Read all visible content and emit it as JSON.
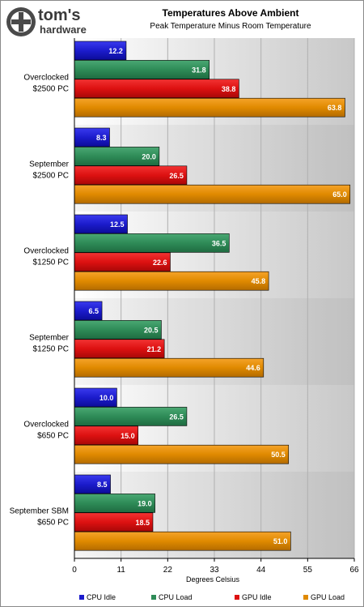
{
  "header": {
    "logo_text_top": "tom's",
    "logo_text_bottom": "hardware"
  },
  "chart_data": {
    "type": "bar",
    "orientation": "horizontal",
    "title": "Temperatures Above Ambient",
    "subtitle": "Peak Temperature Minus Room Temperature",
    "xlabel": "Degrees Celsius",
    "ylabel": "",
    "xlim": [
      0,
      66
    ],
    "ticks": [
      0,
      11,
      22,
      33,
      44,
      55,
      66
    ],
    "grid": true,
    "legend_position": "bottom",
    "categories": [
      [
        "Overclocked",
        "$2500 PC"
      ],
      [
        "September",
        "$2500 PC"
      ],
      [
        "Overclocked",
        "$1250 PC"
      ],
      [
        "September",
        "$1250 PC"
      ],
      [
        "Overclocked",
        "$650 PC"
      ],
      [
        "September SBM",
        "$650 PC"
      ]
    ],
    "series": [
      {
        "name": "CPU Idle",
        "color": "#1c1ccc",
        "values": [
          12.2,
          8.3,
          12.5,
          6.5,
          10.0,
          8.5
        ]
      },
      {
        "name": "CPU Load",
        "color": "#2e8b57",
        "values": [
          31.8,
          20.0,
          36.5,
          20.5,
          26.5,
          19.0
        ]
      },
      {
        "name": "GPU Idle",
        "color": "#dd1111",
        "values": [
          38.8,
          26.5,
          22.6,
          21.2,
          15.0,
          18.5
        ]
      },
      {
        "name": "GPU Load",
        "color": "#e08a00",
        "values": [
          63.8,
          65.0,
          45.8,
          44.6,
          50.5,
          51.0
        ]
      }
    ]
  }
}
